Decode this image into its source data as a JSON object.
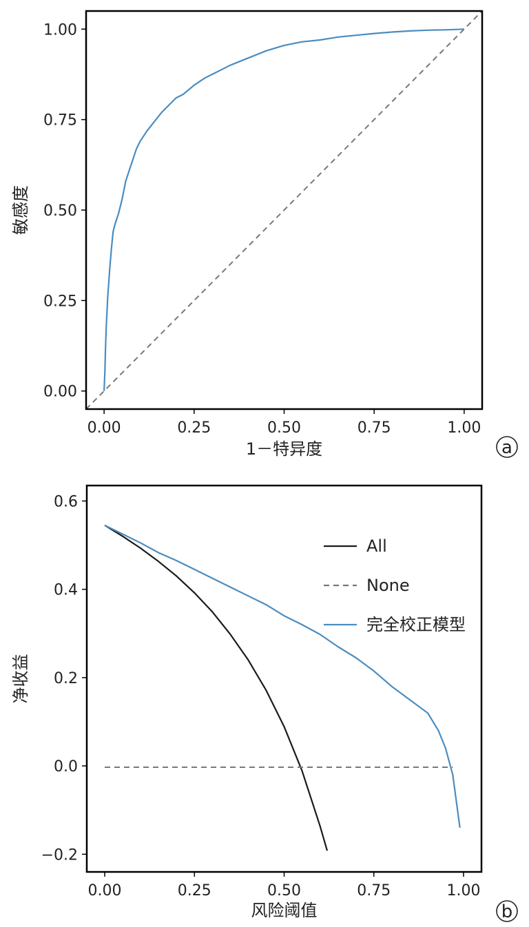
{
  "colors": {
    "curve": "#4a8cbf",
    "ref": "#777777",
    "all": "#1a1a1a",
    "axis": "#000000"
  },
  "chart_data": [
    {
      "type": "line",
      "panel_label": "a",
      "xlabel": "1－特异度",
      "ylabel": "敏感度",
      "xlim": [
        -0.05,
        1.05
      ],
      "ylim": [
        -0.05,
        1.05
      ],
      "xticks": [
        "0.00",
        "0.25",
        "0.50",
        "0.75",
        "1.00"
      ],
      "yticks": [
        "0.00",
        "0.25",
        "0.50",
        "0.75",
        "1.00"
      ],
      "grid": false,
      "series": [
        {
          "style": "solid",
          "x": [
            0,
            0.002,
            0.004,
            0.006,
            0.01,
            0.015,
            0.02,
            0.025,
            0.03,
            0.04,
            0.05,
            0.06,
            0.07,
            0.08,
            0.09,
            0.1,
            0.12,
            0.14,
            0.16,
            0.18,
            0.2,
            0.22,
            0.25,
            0.28,
            0.3,
            0.35,
            0.4,
            0.45,
            0.5,
            0.55,
            0.6,
            0.65,
            0.7,
            0.75,
            0.8,
            0.85,
            0.9,
            0.95,
            1.0
          ],
          "y": [
            0,
            0.05,
            0.12,
            0.18,
            0.26,
            0.33,
            0.39,
            0.44,
            0.46,
            0.49,
            0.53,
            0.58,
            0.61,
            0.64,
            0.67,
            0.69,
            0.72,
            0.745,
            0.77,
            0.79,
            0.81,
            0.82,
            0.845,
            0.865,
            0.875,
            0.9,
            0.92,
            0.94,
            0.955,
            0.965,
            0.97,
            0.978,
            0.983,
            0.988,
            0.992,
            0.995,
            0.997,
            0.998,
            1.0
          ]
        },
        {
          "style": "dashed",
          "x": [
            -0.05,
            1.05
          ],
          "y": [
            -0.05,
            1.05
          ]
        }
      ]
    },
    {
      "type": "line",
      "panel_label": "b",
      "xlabel": "风险阈值",
      "ylabel": "净收益",
      "xlim": [
        -0.05,
        1.05
      ],
      "ylim": [
        -0.24,
        0.635
      ],
      "xticks": [
        "0.00",
        "0.25",
        "0.50",
        "0.75",
        "1.00"
      ],
      "yticks": [
        "−0.2",
        "0.0",
        "0.2",
        "0.4",
        "0.6"
      ],
      "grid": false,
      "legend_position": "top-right",
      "series": [
        {
          "name": "All",
          "style": "solid-black",
          "x": [
            0,
            0.05,
            0.1,
            0.15,
            0.2,
            0.25,
            0.3,
            0.35,
            0.4,
            0.45,
            0.5,
            0.55,
            0.6,
            0.62
          ],
          "y": [
            0.545,
            0.52,
            0.493,
            0.463,
            0.43,
            0.392,
            0.349,
            0.298,
            0.24,
            0.171,
            0.089,
            -0.011,
            -0.136,
            -0.192
          ]
        },
        {
          "name": "None",
          "style": "dashed",
          "x": [
            0,
            0.97
          ],
          "y": [
            -0.003,
            -0.003
          ]
        },
        {
          "name": "完全校正模型",
          "style": "solid-blue",
          "x": [
            0,
            0.05,
            0.1,
            0.15,
            0.2,
            0.25,
            0.3,
            0.35,
            0.4,
            0.45,
            0.5,
            0.55,
            0.6,
            0.65,
            0.7,
            0.75,
            0.8,
            0.85,
            0.9,
            0.93,
            0.95,
            0.97,
            0.99
          ],
          "y": [
            0.545,
            0.525,
            0.505,
            0.483,
            0.465,
            0.445,
            0.425,
            0.405,
            0.385,
            0.365,
            0.34,
            0.32,
            0.298,
            0.27,
            0.245,
            0.215,
            0.18,
            0.15,
            0.12,
            0.08,
            0.04,
            -0.02,
            -0.14
          ]
        }
      ]
    }
  ]
}
